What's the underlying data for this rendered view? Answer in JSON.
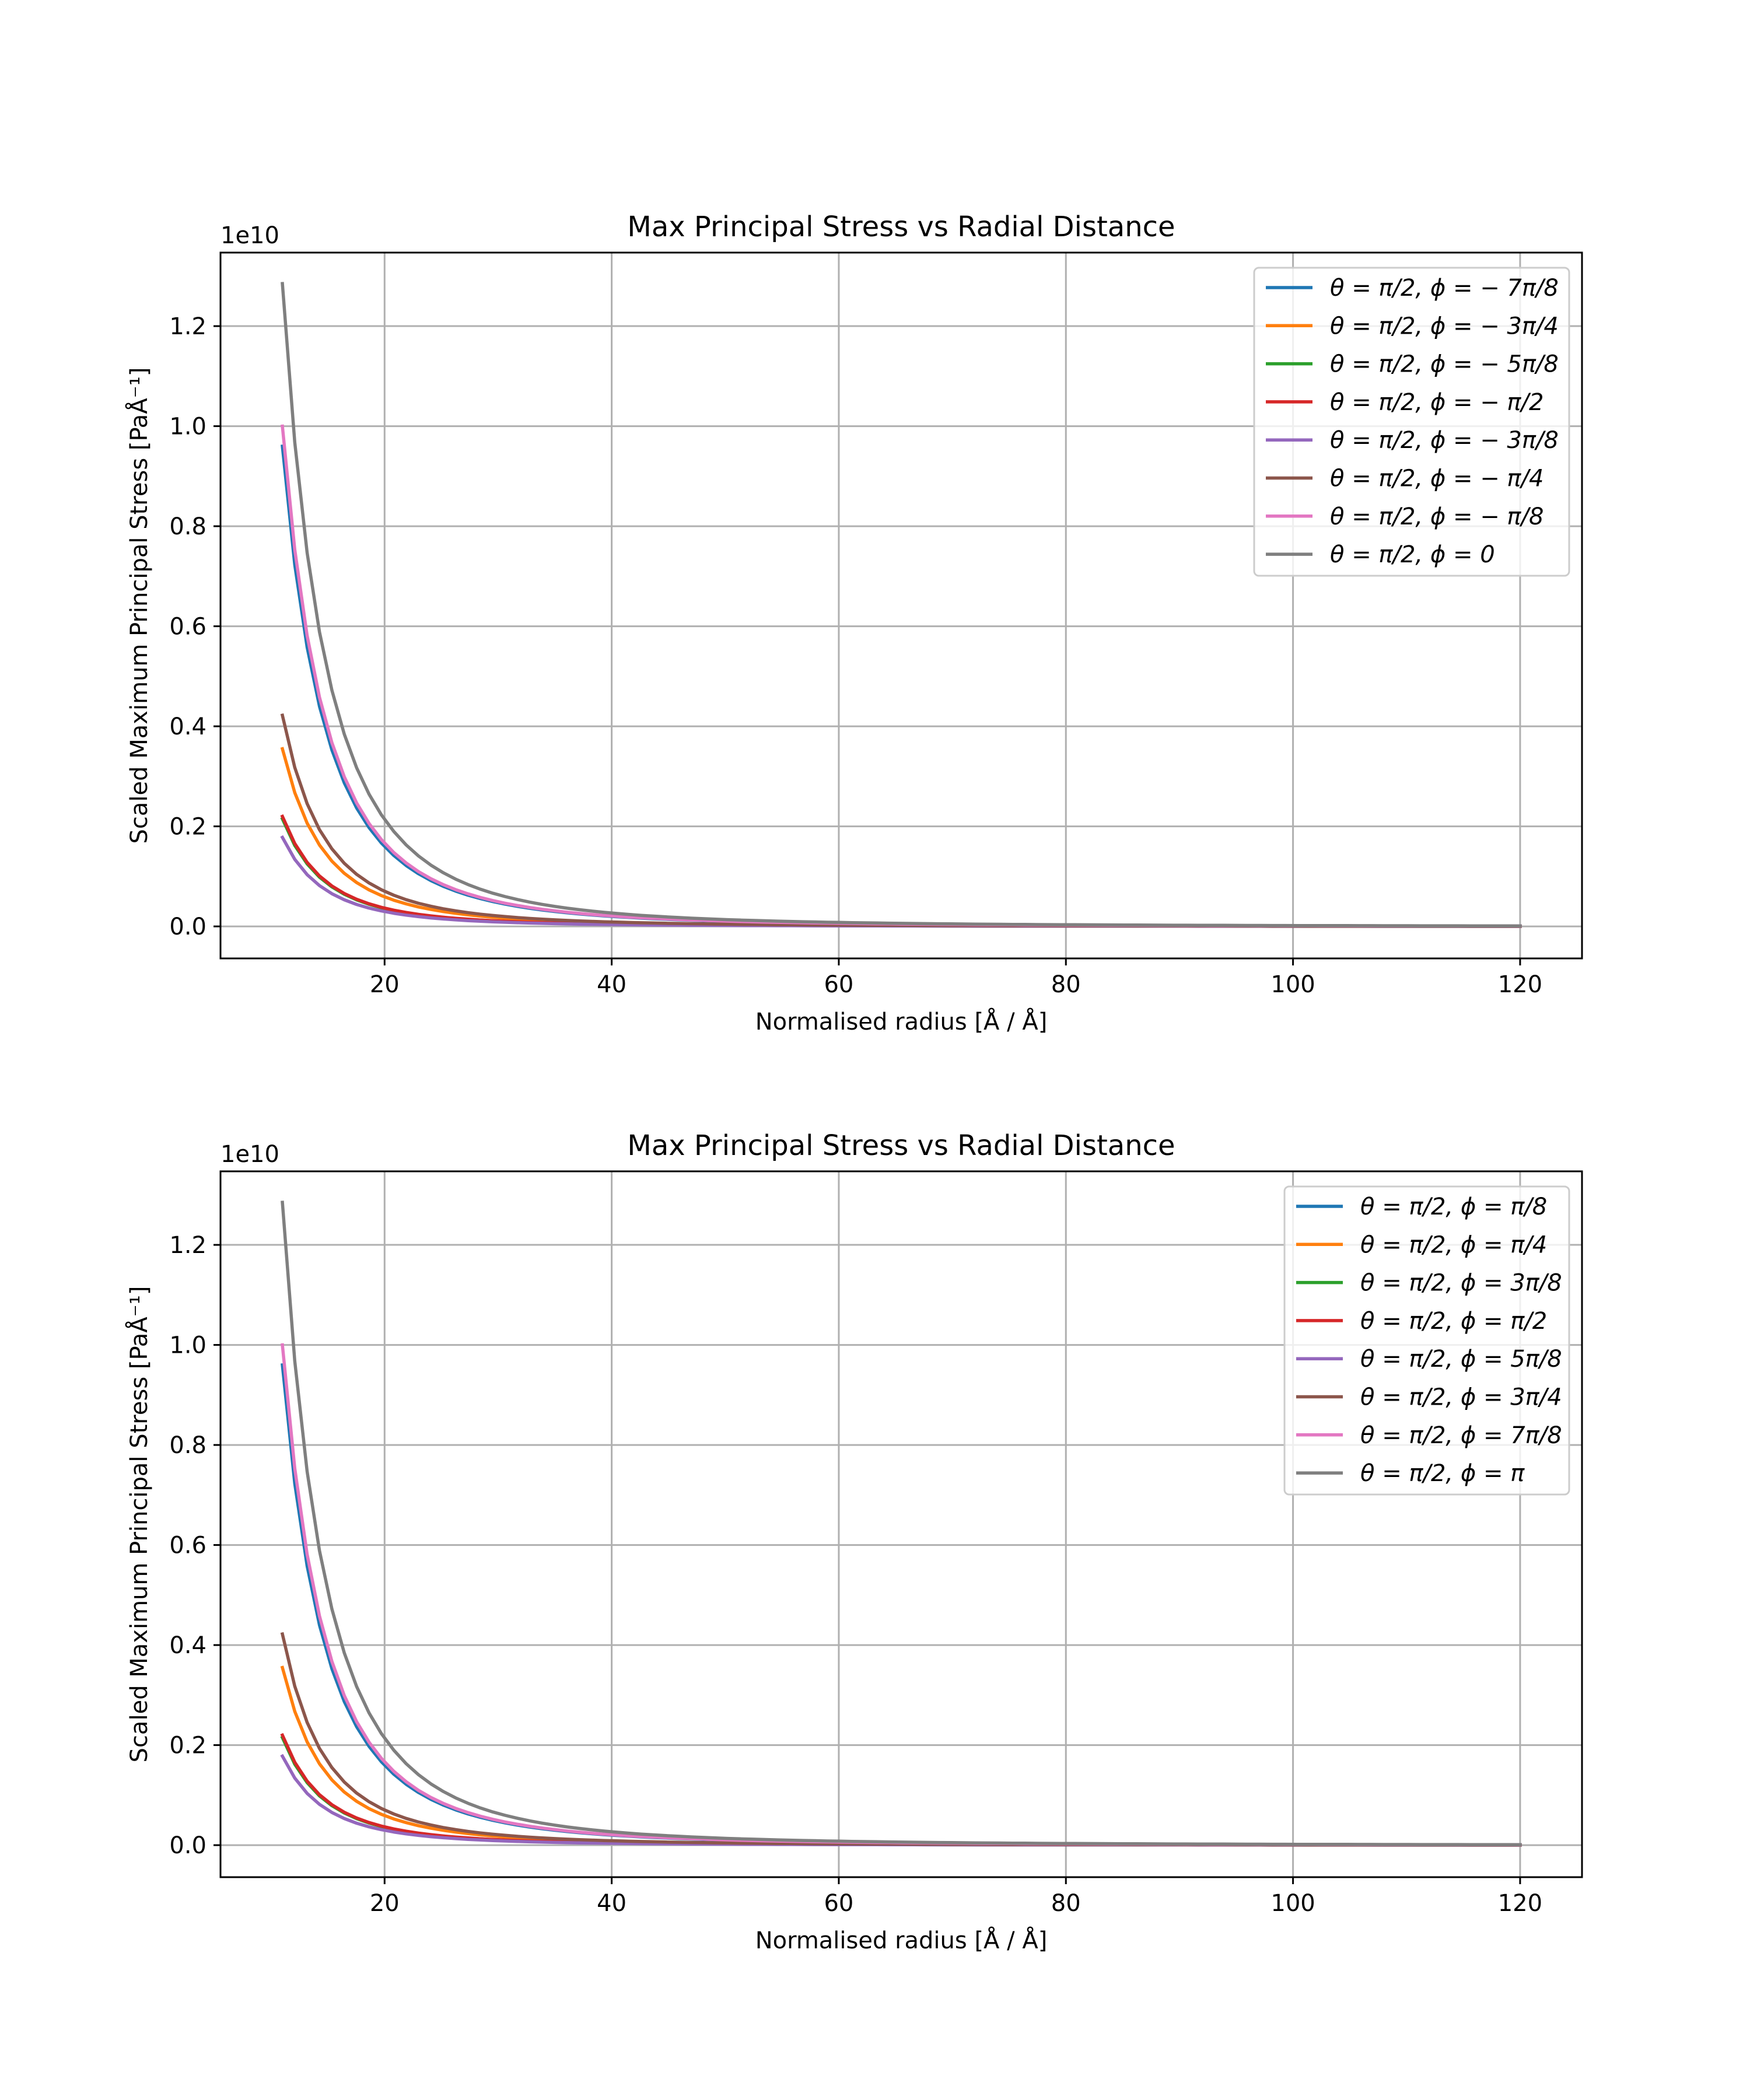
{
  "chart_data": [
    {
      "type": "line",
      "title": "Max Principal Stress vs Radial Distance",
      "xlabel": "Normalised radius [Å / Å]",
      "ylabel": "Scaled Maximum Principal Stress [PaÅ⁻¹]",
      "y_offset_label": "1e10",
      "xlim": [
        5.55,
        125.45
      ],
      "ylim": [
        -0.064,
        1.347
      ],
      "x_ticks": [
        20,
        40,
        60,
        80,
        100,
        120
      ],
      "y_ticks": [
        0.0,
        0.2,
        0.4,
        0.6,
        0.8,
        1.0,
        1.2
      ],
      "x_tick_labels": [
        "20",
        "40",
        "60",
        "80",
        "100",
        "120"
      ],
      "y_tick_labels": [
        "0.0",
        "0.2",
        "0.4",
        "0.6",
        "0.8",
        "1.0",
        "1.2"
      ],
      "grid": true,
      "legend_position": "top-right",
      "x_range": [
        11,
        120
      ],
      "curve_model": "y = y0 * (11 / x)^3",
      "series": [
        {
          "name": "θ = π/2, ϕ = − 7π/8",
          "color": "#1f77b4",
          "y_at_x11": 0.96
        },
        {
          "name": "θ = π/2, ϕ = − 3π/4",
          "color": "#ff7f0e",
          "y_at_x11": 0.355
        },
        {
          "name": "θ = π/2, ϕ = − 5π/8",
          "color": "#2ca02c",
          "y_at_x11": 0.215
        },
        {
          "name": "θ = π/2, ϕ = − π/2",
          "color": "#d62728",
          "y_at_x11": 0.22
        },
        {
          "name": "θ = π/2, ϕ = − 3π/8",
          "color": "#9467bd",
          "y_at_x11": 0.178
        },
        {
          "name": "θ = π/2, ϕ = − π/4",
          "color": "#8c564b",
          "y_at_x11": 0.422
        },
        {
          "name": "θ = π/2, ϕ = − π/8",
          "color": "#e377c2",
          "y_at_x11": 1.0
        },
        {
          "name": "θ = π/2, ϕ = 0",
          "color": "#7f7f7f",
          "y_at_x11": 1.285
        }
      ]
    },
    {
      "type": "line",
      "title": "Max Principal Stress vs Radial Distance",
      "xlabel": "Normalised radius [Å / Å]",
      "ylabel": "Scaled Maximum Principal Stress [PaÅ⁻¹]",
      "y_offset_label": "1e10",
      "xlim": [
        5.55,
        125.45
      ],
      "ylim": [
        -0.064,
        1.347
      ],
      "x_ticks": [
        20,
        40,
        60,
        80,
        100,
        120
      ],
      "y_ticks": [
        0.0,
        0.2,
        0.4,
        0.6,
        0.8,
        1.0,
        1.2
      ],
      "x_tick_labels": [
        "20",
        "40",
        "60",
        "80",
        "100",
        "120"
      ],
      "y_tick_labels": [
        "0.0",
        "0.2",
        "0.4",
        "0.6",
        "0.8",
        "1.0",
        "1.2"
      ],
      "grid": true,
      "legend_position": "top-right",
      "x_range": [
        11,
        120
      ],
      "curve_model": "y = y0 * (11 / x)^3",
      "series": [
        {
          "name": "θ = π/2, ϕ = π/8",
          "color": "#1f77b4",
          "y_at_x11": 0.96
        },
        {
          "name": "θ = π/2, ϕ = π/4",
          "color": "#ff7f0e",
          "y_at_x11": 0.355
        },
        {
          "name": "θ = π/2, ϕ = 3π/8",
          "color": "#2ca02c",
          "y_at_x11": 0.215
        },
        {
          "name": "θ = π/2, ϕ = π/2",
          "color": "#d62728",
          "y_at_x11": 0.22
        },
        {
          "name": "θ = π/2, ϕ = 5π/8",
          "color": "#9467bd",
          "y_at_x11": 0.178
        },
        {
          "name": "θ = π/2, ϕ = 3π/4",
          "color": "#8c564b",
          "y_at_x11": 0.422
        },
        {
          "name": "θ = π/2, ϕ = 7π/8",
          "color": "#e377c2",
          "y_at_x11": 1.0
        },
        {
          "name": "θ = π/2, ϕ = π",
          "color": "#7f7f7f",
          "y_at_x11": 1.285
        }
      ]
    }
  ]
}
